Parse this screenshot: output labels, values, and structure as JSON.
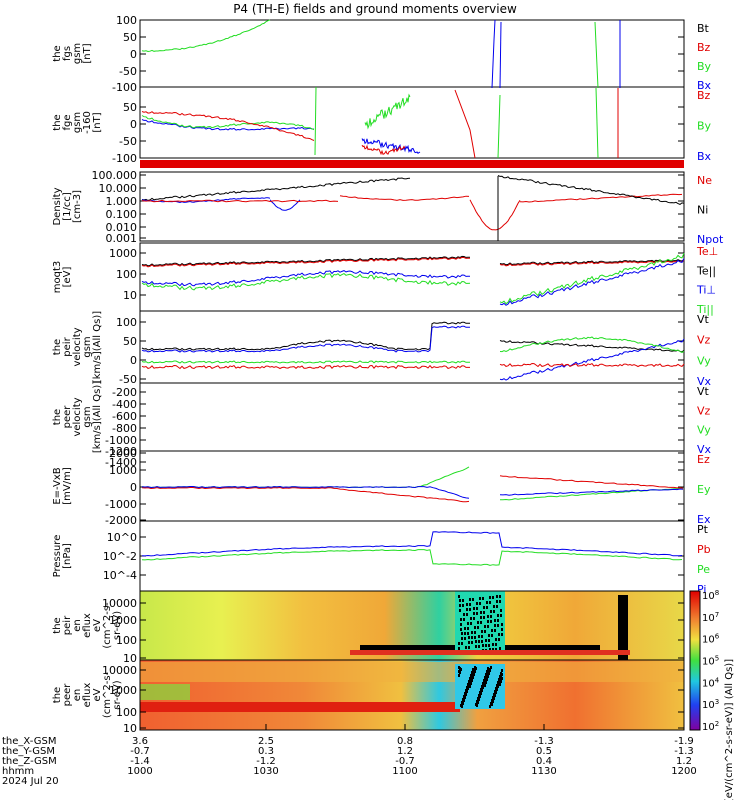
{
  "title": "P4 (TH-E) fields and ground moments overview",
  "colors": {
    "black": "#000000",
    "red": "#e00000",
    "green": "#22dd22",
    "blue": "#0000ee"
  },
  "chart_data": [
    {
      "type": "line",
      "id": "fgs",
      "ylabel": [
        "the",
        "fgs",
        "gsm",
        "[nT]"
      ],
      "yticks": [
        "100",
        "50",
        "0",
        "-50",
        "-100"
      ],
      "ylim": [
        -100,
        100
      ],
      "legend": [
        {
          "name": "Bt",
          "color": "#000000"
        },
        {
          "name": "Bz",
          "color": "#e00000"
        },
        {
          "name": "By",
          "color": "#22dd22"
        },
        {
          "name": "Bx",
          "color": "#0000ee"
        }
      ]
    },
    {
      "type": "line",
      "id": "fge",
      "ylabel": [
        "the",
        "fge",
        "gsm",
        "-160",
        "[nT]"
      ],
      "yticks": [
        "50",
        "0",
        "-50",
        "-100"
      ],
      "ylim": [
        -130,
        70
      ],
      "legend": [
        {
          "name": "Bz",
          "color": "#e00000"
        },
        {
          "name": "By",
          "color": "#22dd22"
        },
        {
          "name": "Bx",
          "color": "#0000ee"
        }
      ]
    },
    {
      "type": "line",
      "id": "density",
      "ylabel": [
        "Density",
        "[1/cc]",
        "[cm-3]"
      ],
      "yticks": [
        "100.000",
        "10.000",
        "1.000",
        "0.100",
        "0.010",
        "0.001"
      ],
      "yscale": "log",
      "legend": [
        {
          "name": "Ne",
          "color": "#e00000"
        },
        {
          "name": "Ni",
          "color": "#000000"
        },
        {
          "name": "Npot",
          "color": "#0000ee"
        }
      ]
    },
    {
      "type": "line",
      "id": "temp",
      "ylabel": [
        "moqt3",
        "[eV]"
      ],
      "yticks": [
        "1000",
        "100",
        "10"
      ],
      "yscale": "log",
      "legend": [
        {
          "name": "Te⊥",
          "color": "#e00000"
        },
        {
          "name": "Te||",
          "color": "#000000"
        },
        {
          "name": "Ti⊥",
          "color": "#0000ee"
        },
        {
          "name": "Ti||",
          "color": "#22dd22"
        }
      ]
    },
    {
      "type": "line",
      "id": "velocity_peir",
      "ylabel": [
        "the",
        "peir",
        "velocity",
        "gsm",
        "[km/s](All Qs)]"
      ],
      "yticks": [
        "100",
        "50",
        "0",
        "-50"
      ],
      "ylim": [
        -50,
        115
      ],
      "legend": [
        {
          "name": "Vt",
          "color": "#000000"
        },
        {
          "name": "Vz",
          "color": "#e00000"
        },
        {
          "name": "Vy",
          "color": "#22dd22"
        },
        {
          "name": "Vx",
          "color": "#0000ee"
        }
      ]
    },
    {
      "type": "line",
      "id": "velocity_peer",
      "ylabel": [
        "the",
        "peer",
        "velocity",
        "gsm",
        "[km/s](All Qs)]"
      ],
      "yticks": [
        "-200",
        "-400",
        "-600",
        "-800",
        "-1000",
        "-1200",
        "-1400"
      ],
      "ylim": [
        -1450,
        -150
      ],
      "legend": [
        {
          "name": "Vt",
          "color": "#000000"
        },
        {
          "name": "Vz",
          "color": "#e00000"
        },
        {
          "name": "Vy",
          "color": "#22dd22"
        },
        {
          "name": "Vx",
          "color": "#0000ee"
        }
      ]
    },
    {
      "type": "line",
      "id": "efield",
      "ylabel": [
        "E=-VxB",
        "[mV/m]"
      ],
      "yticks": [
        "2000",
        "1000",
        "0",
        "-1000",
        "-2000"
      ],
      "ylim": [
        -2000,
        2000
      ],
      "legend": [
        {
          "name": "Ez",
          "color": "#e00000"
        },
        {
          "name": "Ey",
          "color": "#22dd22"
        },
        {
          "name": "Ex",
          "color": "#0000ee"
        }
      ]
    },
    {
      "type": "line",
      "id": "pressure",
      "ylabel": [
        "Pressure",
        "[nPa]"
      ],
      "yticks": [
        "10^-2",
        "10^0",
        "10^-4"
      ],
      "yscale": "log",
      "legend": [
        {
          "name": "Pt",
          "color": "#000000"
        },
        {
          "name": "Pb",
          "color": "#e00000"
        },
        {
          "name": "Pe",
          "color": "#22dd22"
        },
        {
          "name": "Pi",
          "color": "#0000ee"
        }
      ]
    },
    {
      "type": "heatmap",
      "id": "peir_spec",
      "ylabel": [
        "the",
        "peir",
        "en",
        "eflux",
        "eV",
        "(cm^2-s-",
        "sr-eV)"
      ],
      "yticks": [
        "10000",
        "1000",
        "100",
        "10"
      ],
      "yscale": "log"
    },
    {
      "type": "heatmap",
      "id": "peer_spec",
      "ylabel": [
        "the",
        "peer",
        "en",
        "eflux",
        "eV",
        "(cm^2-s-",
        "sr-eV)"
      ],
      "yticks": [
        "10000",
        "1000",
        "100",
        "10"
      ],
      "yscale": "log",
      "colorbar": {
        "ticks": [
          "10^8",
          "10^7",
          "10^6",
          "10^5",
          "10^4",
          "10^3",
          "10^2"
        ],
        "label": "[eV/(cm^2-s-sr-eV)] (All Qs)]"
      }
    }
  ],
  "xaxis": {
    "tick_rows": [
      {
        "label": "the_X-GSM",
        "values": [
          "3.6",
          "2.5",
          "0.8",
          "-1.3",
          "-1.9"
        ]
      },
      {
        "label": "the_Y-GSM",
        "values": [
          "-0.7",
          "0.3",
          "1.2",
          "0.5",
          "-1.3"
        ]
      },
      {
        "label": "the_Z-GSM",
        "values": [
          "-1.4",
          "-1.2",
          "-0.7",
          "0.4",
          "1.2"
        ]
      },
      {
        "label": "hhmm",
        "values": [
          "1000",
          "1030",
          "1100",
          "1130",
          "1200"
        ]
      }
    ],
    "date_label": "2024 Jul 20"
  }
}
